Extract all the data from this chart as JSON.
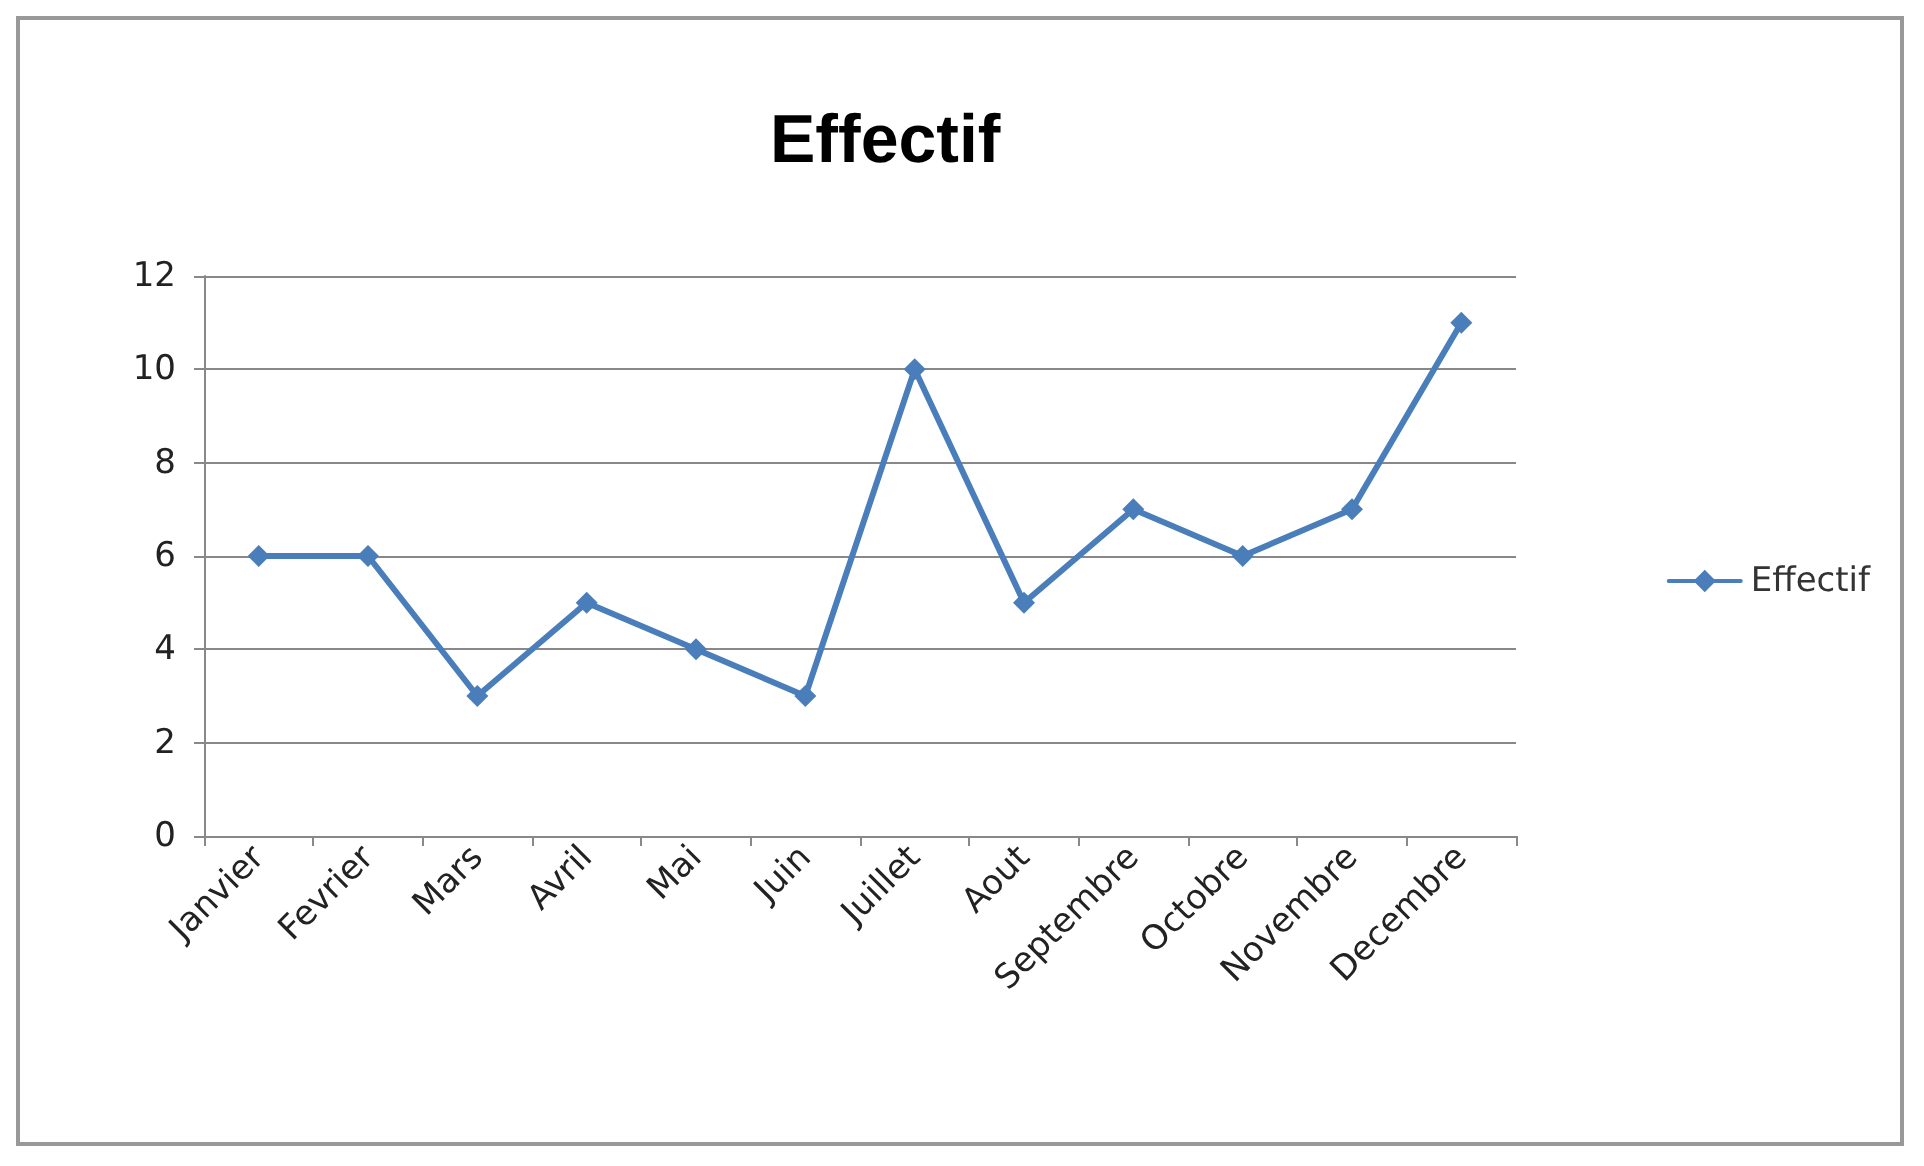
{
  "chart_data": {
    "type": "line",
    "title": "Effectif",
    "categories": [
      "Janvier",
      "Fevrier",
      "Mars",
      "Avril",
      "Mai",
      "Juin",
      "Juillet",
      "Aout",
      "Septembre",
      "Octobre",
      "Novembre",
      "Decembre"
    ],
    "series": [
      {
        "name": "Effectif",
        "color": "#4a7ebb",
        "values": [
          6,
          6,
          3,
          5,
          4,
          3,
          10,
          5,
          7,
          6,
          7,
          11
        ]
      }
    ],
    "ylim": [
      0,
      12
    ],
    "yticks": [
      0,
      2,
      4,
      6,
      8,
      10,
      12
    ],
    "grid": "y",
    "legend": "right",
    "marker": "diamond",
    "line_style": "solid"
  }
}
